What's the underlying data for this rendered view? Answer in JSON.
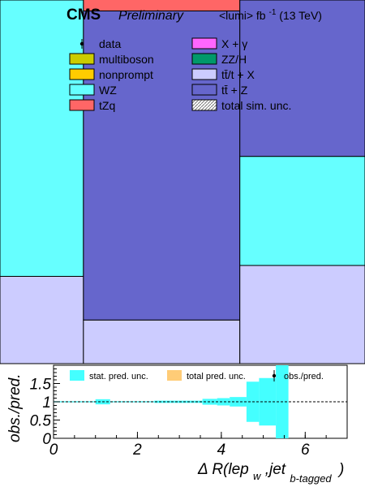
{
  "header": {
    "experiment": "CMS",
    "status": "Preliminary",
    "lumi_text": "<lumi> fb",
    "lumi_exp": "-1",
    "energy": "(13 TeV)"
  },
  "legend": {
    "left": [
      {
        "label": "data",
        "marker": "point",
        "color": "#000000"
      },
      {
        "label": "multiboson",
        "marker": "box",
        "color": "#cccc00"
      },
      {
        "label": "nonprompt",
        "marker": "box",
        "color": "#ffcc00"
      },
      {
        "label": "WZ",
        "marker": "box",
        "color": "#66ffff"
      },
      {
        "label": "tZq",
        "marker": "box",
        "color": "#ff6666"
      }
    ],
    "right": [
      {
        "label": "X + γ",
        "marker": "box",
        "color": "#ff66ff"
      },
      {
        "label": "ZZ/H",
        "marker": "box",
        "color": "#00996a"
      },
      {
        "label": "tt̄/t + X",
        "marker": "box",
        "color": "#ccccff"
      },
      {
        "label": "tt̄ + Z",
        "marker": "box",
        "color": "#6666cc"
      },
      {
        "label": "total sim. unc.",
        "marker": "hatch",
        "color": "#888888"
      }
    ]
  },
  "chart_data": [
    {
      "type": "bar",
      "stacked": true,
      "panel": "main",
      "x_bin_edges": [
        0,
        1.6,
        4.6,
        7.0
      ],
      "ylim": [
        0,
        1
      ],
      "y_axis_visible": false,
      "x_axis_visible": false,
      "series": [
        {
          "name": "tt̄/t + X",
          "color": "#ccccff",
          "values": [
            0.24,
            0.12,
            0.27
          ]
        },
        {
          "name": "WZ",
          "color": "#66ffff",
          "values": [
            0.76,
            0.0,
            0.3
          ]
        },
        {
          "name": "tt̄ + Z",
          "color": "#6666cc",
          "values": [
            0.0,
            0.85,
            0.43
          ]
        },
        {
          "name": "tZq",
          "color": "#ff6666",
          "values": [
            0.0,
            0.035,
            0.0
          ]
        }
      ]
    },
    {
      "type": "area",
      "panel": "ratio",
      "xlabel": "Δ R(lep",
      "xlabel_sub_w": "w",
      "xlabel_mid": ",jet",
      "xlabel_sub_b": "b-tagged",
      "xlabel_end": ")",
      "ylabel": "obs./pred.",
      "xlim": [
        0,
        7
      ],
      "ylim": [
        0,
        2
      ],
      "x_ticks": [
        0,
        2,
        4,
        6
      ],
      "y_ticks": [
        0,
        0.5,
        1,
        1.5
      ],
      "y_tick_labels": [
        "0",
        "0.5",
        "1",
        "1.5"
      ],
      "reference_line": 1,
      "legend": [
        {
          "label": "stat. pred. unc.",
          "color": "#44ffff"
        },
        {
          "label": "total pred. unc.",
          "color": "#ffcc77"
        },
        {
          "label": "obs./pred.",
          "color": "#000000"
        }
      ],
      "stat_unc_band": {
        "bin_edges": [
          0,
          1.0,
          1.35,
          2.4,
          3.55,
          3.9,
          4.2,
          4.6,
          4.9,
          5.3,
          5.6
        ],
        "low": [
          0.985,
          0.93,
          0.985,
          0.97,
          0.92,
          0.9,
          0.87,
          0.45,
          0.35,
          0.0
        ],
        "high": [
          1.015,
          1.07,
          1.015,
          1.03,
          1.08,
          1.1,
          1.13,
          1.55,
          1.65,
          2.0
        ]
      }
    }
  ]
}
